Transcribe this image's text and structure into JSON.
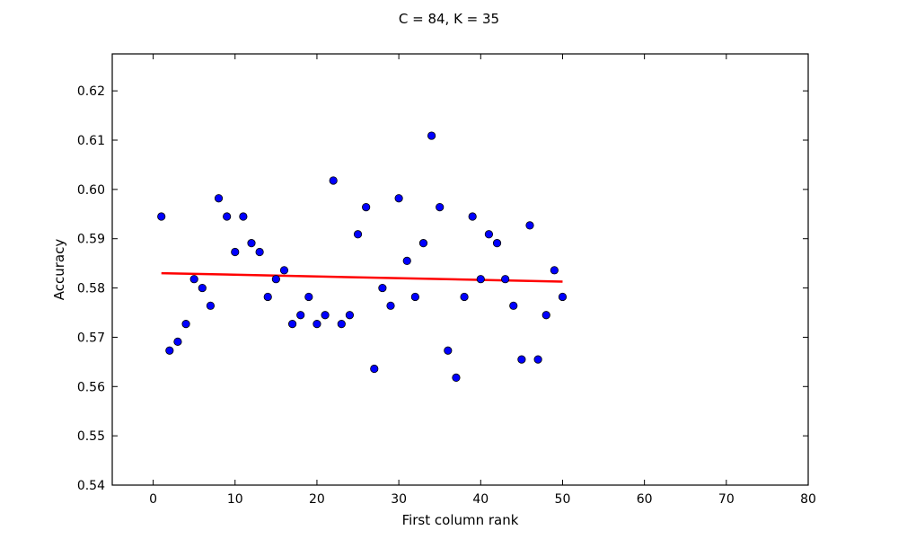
{
  "chart_data": {
    "type": "scatter",
    "title": "C = 84, K = 35",
    "xlabel": "First column rank",
    "ylabel": "Accuracy",
    "xlim": [
      -5,
      80
    ],
    "ylim": [
      0.54,
      0.6275
    ],
    "xticks": [
      0,
      10,
      20,
      30,
      40,
      50,
      60,
      70,
      80
    ],
    "yticks": [
      0.54,
      0.55,
      0.56,
      0.57,
      0.58,
      0.59,
      0.6,
      0.61,
      0.62
    ],
    "xtick_labels": [
      "0",
      "10",
      "20",
      "30",
      "40",
      "50",
      "60",
      "70",
      "80"
    ],
    "ytick_labels": [
      "0.54",
      "0.55",
      "0.56",
      "0.57",
      "0.58",
      "0.59",
      "0.60",
      "0.61",
      "0.62"
    ],
    "grid": false,
    "series": [
      {
        "type": "scatter",
        "color": "#0000ff",
        "x": [
          1,
          2,
          3,
          4,
          5,
          6,
          7,
          8,
          9,
          10,
          11,
          12,
          13,
          14,
          15,
          16,
          17,
          18,
          19,
          20,
          21,
          22,
          23,
          24,
          25,
          26,
          27,
          28,
          29,
          30,
          31,
          32,
          33,
          34,
          35,
          36,
          37,
          38,
          39,
          40,
          41,
          42,
          43,
          44,
          45,
          46,
          47,
          48,
          49,
          50
        ],
        "y": [
          0.5945,
          0.5673,
          0.5691,
          0.5727,
          0.5818,
          0.58,
          0.5764,
          0.5982,
          0.5945,
          0.5873,
          0.5945,
          0.5891,
          0.5873,
          0.5782,
          0.5818,
          0.5836,
          0.5727,
          0.5745,
          0.5782,
          0.5727,
          0.5745,
          0.6018,
          0.5727,
          0.5745,
          0.5909,
          0.5964,
          0.5636,
          0.58,
          0.5764,
          0.5982,
          0.5855,
          0.5782,
          0.5891,
          0.6109,
          0.5964,
          0.5673,
          0.5618,
          0.5782,
          0.5945,
          0.5818,
          0.5909,
          0.5891,
          0.5818,
          0.5764,
          0.5655,
          0.5927,
          0.5655,
          0.5745,
          0.5836,
          0.5782
        ]
      },
      {
        "type": "line",
        "color": "#ff0000",
        "x": [
          1,
          50
        ],
        "y": [
          0.583,
          0.5813
        ]
      }
    ]
  }
}
